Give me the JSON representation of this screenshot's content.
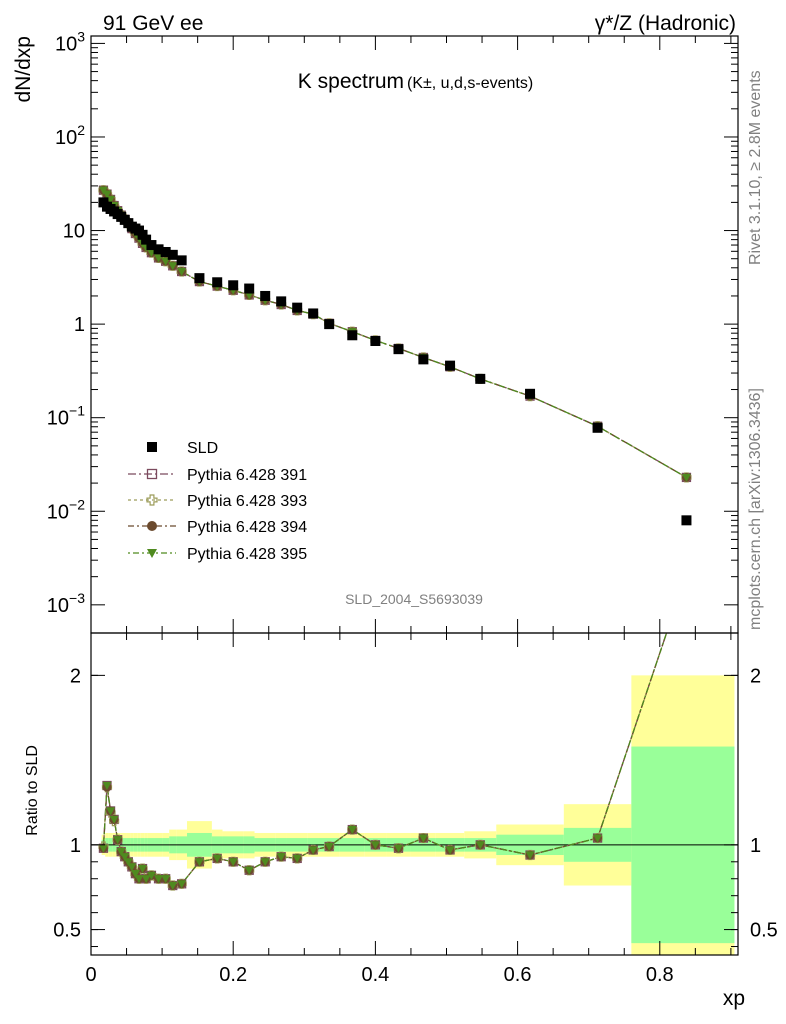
{
  "header": {
    "left": "91 GeV ee",
    "right": "γ*/Z (Hadronic)"
  },
  "side_labels": {
    "rivet": "Rivet 3.1.10, ≥ 2.8M events",
    "mcplots": "mcplots.cern.ch [arXiv:1306.3436]"
  },
  "plot_title": {
    "main": "K spectrum",
    "sub": "(K±, u,d,s-events)"
  },
  "analysis_id": "SLD_2004_S5693039",
  "colors": {
    "data": "#000000",
    "p391": "#7b4a5e",
    "p393": "#9c9c5a",
    "p394": "#6b4a2e",
    "p395": "#4f8a1f",
    "band_inner": "#99ff99",
    "band_outer": "#ffff99"
  },
  "chart_data": [
    {
      "type": "scatter",
      "panel": "main",
      "ylabel": "dN/dxp",
      "log_y": true,
      "ylim": [
        0.0005,
        1200
      ],
      "xlim": [
        0,
        0.91
      ],
      "y_ticks": [
        "10^-3",
        "10^-2",
        "10^-1",
        "1",
        "10",
        "10^2",
        "10^3"
      ],
      "legend_position": "lower-left",
      "x": [
        0.0175,
        0.0225,
        0.0275,
        0.0325,
        0.0375,
        0.0425,
        0.0475,
        0.0525,
        0.0575,
        0.0625,
        0.0675,
        0.0725,
        0.0775,
        0.085,
        0.095,
        0.105,
        0.115,
        0.1275,
        0.1525,
        0.1775,
        0.2,
        0.2225,
        0.245,
        0.2675,
        0.29,
        0.3125,
        0.335,
        0.3675,
        0.4,
        0.4325,
        0.4675,
        0.505,
        0.5475,
        0.6175,
        0.7125,
        0.8375
      ],
      "series": [
        {
          "name": "SLD",
          "marker": "filled-square",
          "values": [
            20,
            18,
            17,
            16,
            15,
            14,
            13,
            12,
            11,
            10.5,
            10,
            9,
            8,
            7,
            6.3,
            5.9,
            5.5,
            4.8,
            3.1,
            2.8,
            2.6,
            2.4,
            2.0,
            1.75,
            1.5,
            1.3,
            1.0,
            0.76,
            0.66,
            0.54,
            0.42,
            0.36,
            0.26,
            0.18,
            0.078,
            0.008
          ]
        },
        {
          "name": "Pythia 6.428 391",
          "marker": "open-square",
          "values": [
            27,
            24.5,
            21.5,
            18.5,
            16.3,
            14.6,
            13.2,
            12.0,
            10.5,
            9.3,
            8.3,
            7.3,
            6.6,
            5.8,
            5.1,
            4.7,
            4.2,
            3.65,
            2.85,
            2.55,
            2.3,
            2.05,
            1.8,
            1.62,
            1.4,
            1.28,
            1.02,
            0.83,
            0.67,
            0.55,
            0.44,
            0.35,
            0.26,
            0.17,
            0.081,
            0.023
          ]
        },
        {
          "name": "Pythia 6.428 393",
          "marker": "open-cross",
          "values": [
            27,
            24.5,
            21.5,
            18.5,
            16.3,
            14.6,
            13.2,
            12.0,
            10.5,
            9.3,
            8.3,
            7.3,
            6.6,
            5.8,
            5.1,
            4.7,
            4.2,
            3.65,
            2.85,
            2.55,
            2.3,
            2.05,
            1.8,
            1.62,
            1.4,
            1.28,
            1.02,
            0.83,
            0.67,
            0.55,
            0.44,
            0.35,
            0.26,
            0.17,
            0.081,
            0.023
          ]
        },
        {
          "name": "Pythia 6.428 394",
          "marker": "filled-circle",
          "values": [
            27,
            24.5,
            21.5,
            18.5,
            16.3,
            14.6,
            13.2,
            12.0,
            10.5,
            9.3,
            8.3,
            7.3,
            6.6,
            5.8,
            5.1,
            4.7,
            4.2,
            3.65,
            2.85,
            2.55,
            2.3,
            2.05,
            1.8,
            1.62,
            1.4,
            1.28,
            1.02,
            0.83,
            0.67,
            0.55,
            0.44,
            0.35,
            0.26,
            0.17,
            0.081,
            0.023
          ]
        },
        {
          "name": "Pythia 6.428 395",
          "marker": "filled-triangle-down",
          "values": [
            27,
            24.5,
            21.5,
            18.5,
            16.3,
            14.6,
            13.2,
            12.0,
            10.5,
            9.3,
            8.3,
            7.3,
            6.6,
            5.8,
            5.1,
            4.7,
            4.2,
            3.65,
            2.85,
            2.55,
            2.3,
            2.05,
            1.8,
            1.62,
            1.4,
            1.28,
            1.02,
            0.83,
            0.67,
            0.55,
            0.44,
            0.35,
            0.26,
            0.17,
            0.081,
            0.023
          ]
        }
      ]
    },
    {
      "type": "line",
      "panel": "ratio",
      "ylabel": "Ratio to SLD",
      "xlabel": "xp",
      "ylim": [
        0.35,
        2.25
      ],
      "xlim": [
        0,
        0.91
      ],
      "y_ticks": [
        "0.5",
        "1",
        "2"
      ],
      "x_ticks": [
        "0",
        "0.2",
        "0.4",
        "0.6",
        "0.8"
      ],
      "x": [
        0.0175,
        0.0225,
        0.0275,
        0.0325,
        0.0375,
        0.0425,
        0.0475,
        0.0525,
        0.0575,
        0.0625,
        0.0675,
        0.0725,
        0.0775,
        0.085,
        0.095,
        0.105,
        0.115,
        0.1275,
        0.1525,
        0.1775,
        0.2,
        0.2225,
        0.245,
        0.2675,
        0.29,
        0.3125,
        0.335,
        0.3675,
        0.4,
        0.4325,
        0.4675,
        0.505,
        0.5475,
        0.6175,
        0.7125,
        0.8375
      ],
      "series": [
        {
          "name": "Pythia 6.428 391",
          "values": [
            0.98,
            1.35,
            1.2,
            1.15,
            1.03,
            0.96,
            0.93,
            0.9,
            0.87,
            0.83,
            0.8,
            0.86,
            0.8,
            0.82,
            0.8,
            0.8,
            0.76,
            0.77,
            0.9,
            0.92,
            0.9,
            0.85,
            0.9,
            0.93,
            0.92,
            0.97,
            0.99,
            1.09,
            1.0,
            0.98,
            1.04,
            0.97,
            1.0,
            0.94,
            1.04,
            2.6
          ]
        },
        {
          "name": "Pythia 6.428 393",
          "values": [
            0.99,
            1.34,
            1.19,
            1.14,
            1.03,
            0.96,
            0.93,
            0.9,
            0.87,
            0.83,
            0.8,
            0.86,
            0.8,
            0.82,
            0.8,
            0.8,
            0.76,
            0.77,
            0.9,
            0.92,
            0.9,
            0.85,
            0.9,
            0.93,
            0.92,
            0.97,
            0.99,
            1.09,
            1.0,
            0.98,
            1.04,
            0.97,
            1.0,
            0.94,
            1.04,
            2.6
          ]
        },
        {
          "name": "Pythia 6.428 394",
          "values": [
            0.98,
            1.34,
            1.2,
            1.15,
            1.03,
            0.96,
            0.93,
            0.9,
            0.87,
            0.83,
            0.8,
            0.86,
            0.8,
            0.82,
            0.8,
            0.8,
            0.76,
            0.77,
            0.9,
            0.92,
            0.9,
            0.85,
            0.9,
            0.93,
            0.92,
            0.97,
            0.99,
            1.09,
            1.0,
            0.98,
            1.04,
            0.97,
            1.0,
            0.94,
            1.04,
            2.6
          ]
        },
        {
          "name": "Pythia 6.428 395",
          "values": [
            0.98,
            1.35,
            1.2,
            1.15,
            1.03,
            0.96,
            0.93,
            0.9,
            0.87,
            0.83,
            0.8,
            0.86,
            0.8,
            0.82,
            0.8,
            0.8,
            0.76,
            0.77,
            0.9,
            0.92,
            0.9,
            0.85,
            0.9,
            0.93,
            0.92,
            0.97,
            0.99,
            1.09,
            1.0,
            0.98,
            1.04,
            0.97,
            1.0,
            0.94,
            1.04,
            2.6
          ]
        }
      ],
      "uncertainty_band": {
        "bin_edges": [
          0.015,
          0.02,
          0.025,
          0.03,
          0.035,
          0.04,
          0.045,
          0.05,
          0.055,
          0.06,
          0.065,
          0.07,
          0.075,
          0.08,
          0.09,
          0.1,
          0.11,
          0.12,
          0.135,
          0.17,
          0.185,
          0.215,
          0.23,
          0.26,
          0.275,
          0.305,
          0.32,
          0.35,
          0.385,
          0.415,
          0.45,
          0.485,
          0.525,
          0.57,
          0.665,
          0.76,
          0.905
        ],
        "inner_halfwidth": [
          0.03,
          0.04,
          0.04,
          0.04,
          0.04,
          0.04,
          0.04,
          0.04,
          0.04,
          0.04,
          0.04,
          0.04,
          0.04,
          0.04,
          0.04,
          0.04,
          0.05,
          0.05,
          0.07,
          0.05,
          0.05,
          0.05,
          0.04,
          0.04,
          0.04,
          0.04,
          0.04,
          0.04,
          0.04,
          0.04,
          0.04,
          0.04,
          0.04,
          0.06,
          0.1,
          0.58
        ],
        "outer_halfwidth": [
          0.06,
          0.07,
          0.07,
          0.07,
          0.07,
          0.07,
          0.07,
          0.07,
          0.07,
          0.07,
          0.07,
          0.07,
          0.07,
          0.07,
          0.07,
          0.07,
          0.09,
          0.09,
          0.14,
          0.09,
          0.08,
          0.08,
          0.07,
          0.07,
          0.07,
          0.07,
          0.07,
          0.07,
          0.07,
          0.07,
          0.07,
          0.07,
          0.08,
          0.12,
          0.24,
          1.0
        ]
      }
    }
  ]
}
